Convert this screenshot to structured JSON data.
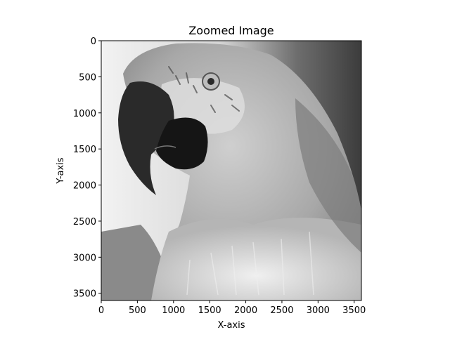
{
  "chart_data": {
    "type": "image",
    "title": "Zoomed Image",
    "xlabel": "X-axis",
    "ylabel": "Y-axis",
    "xlim": [
      0,
      3600
    ],
    "ylim": [
      3600,
      0
    ],
    "xticks": [
      0,
      500,
      1000,
      1500,
      2000,
      2500,
      3000,
      3500
    ],
    "yticks": [
      0,
      500,
      1000,
      1500,
      2000,
      2500,
      3000,
      3500
    ],
    "colormap": "gray",
    "image_subject": "parrot head",
    "grid": false
  }
}
